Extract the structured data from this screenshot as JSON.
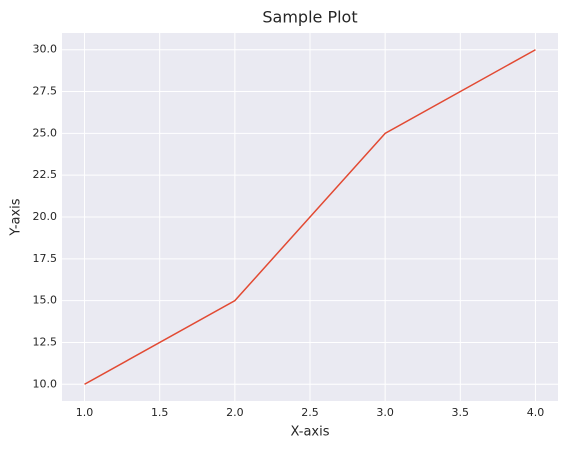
{
  "chart_data": {
    "type": "line",
    "title": "Sample Plot",
    "x_label": "X-axis",
    "y_label": "Y-axis",
    "x": [
      1,
      2,
      3,
      4
    ],
    "values": [
      10,
      15,
      25,
      30
    ],
    "color": "#e24a33",
    "xlim": [
      0.85,
      4.15
    ],
    "xticks": [
      {
        "value": 1,
        "label": "1.0"
      },
      1.5,
      {
        "value": 2,
        "label": "2.0"
      },
      2.5,
      {
        "value": 3,
        "label": "3.0"
      },
      3.5,
      {
        "value": 4,
        "label": "4.0"
      }
    ],
    "ylim": [
      9,
      31
    ],
    "yticks": [
      {
        "value": 10,
        "label": "10.0"
      },
      12.5,
      {
        "value": 15,
        "label": "15.0"
      },
      17.5,
      {
        "value": 20,
        "label": "20.0"
      },
      22.5,
      {
        "value": 25,
        "label": "25.0"
      },
      27.5,
      {
        "value": 30,
        "label": "30.0"
      }
    ],
    "grid": true
  }
}
